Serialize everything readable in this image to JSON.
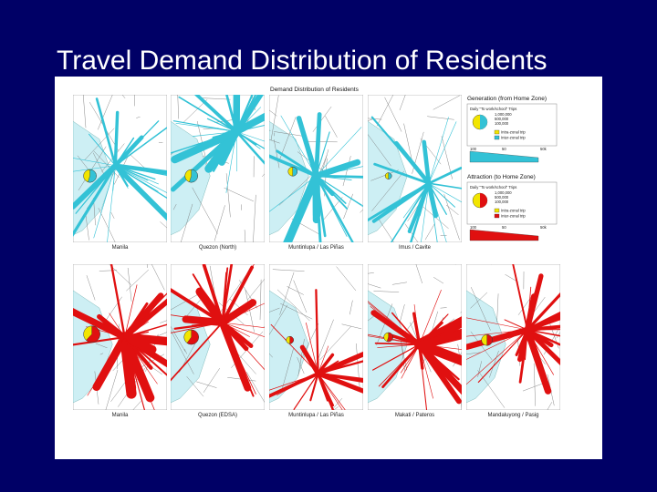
{
  "slide": {
    "title": "Travel Demand Distribution of Residents"
  },
  "figure": {
    "heading": "Demand Distribution of Residents",
    "colors": {
      "sea": "#cdeff4",
      "land": "#ffffff",
      "generation": "#33c2d6",
      "attraction": "#e01010",
      "intra": "#f2e500",
      "road": "#7a7a7a"
    },
    "legend_generation": {
      "title": "Generation (from Home Zone)",
      "subtitle": "Daily \"To work/school\" Trips",
      "scale": [
        "1,000,000",
        "500,000",
        "100,000"
      ],
      "entries": [
        "Intra-zonal trip",
        "Inter-zonal trip"
      ],
      "bar_ticks": [
        "100",
        "50",
        "50k"
      ]
    },
    "legend_attraction": {
      "title": "Attraction (to Home Zone)",
      "subtitle": "Daily \"To work/school\" Trips",
      "scale": [
        "1,000,000",
        "500,000",
        "100,000"
      ],
      "entries": [
        "Intra-zonal trip",
        "Inter-zonal trip"
      ],
      "bar_ticks": [
        "100",
        "50",
        "50k"
      ]
    },
    "generation_maps": [
      {
        "caption": "Manila",
        "icon": "radial-flow-map"
      },
      {
        "caption": "Quezon (North)",
        "icon": "radial-flow-map"
      },
      {
        "caption": "Muntinlupa / Las Piñas",
        "icon": "radial-flow-map"
      },
      {
        "caption": "Imus / Cavite",
        "icon": "radial-flow-map"
      }
    ],
    "attraction_maps": [
      {
        "caption": "Manila",
        "icon": "radial-flow-map"
      },
      {
        "caption": "Quezon (EDSA)",
        "icon": "radial-flow-map"
      },
      {
        "caption": "Muntinlupa / Las Piñas",
        "icon": "radial-flow-map"
      },
      {
        "caption": "Makati / Pateros",
        "icon": "radial-flow-map"
      },
      {
        "caption": "Mandaluyong / Pasig",
        "icon": "radial-flow-map"
      }
    ]
  }
}
